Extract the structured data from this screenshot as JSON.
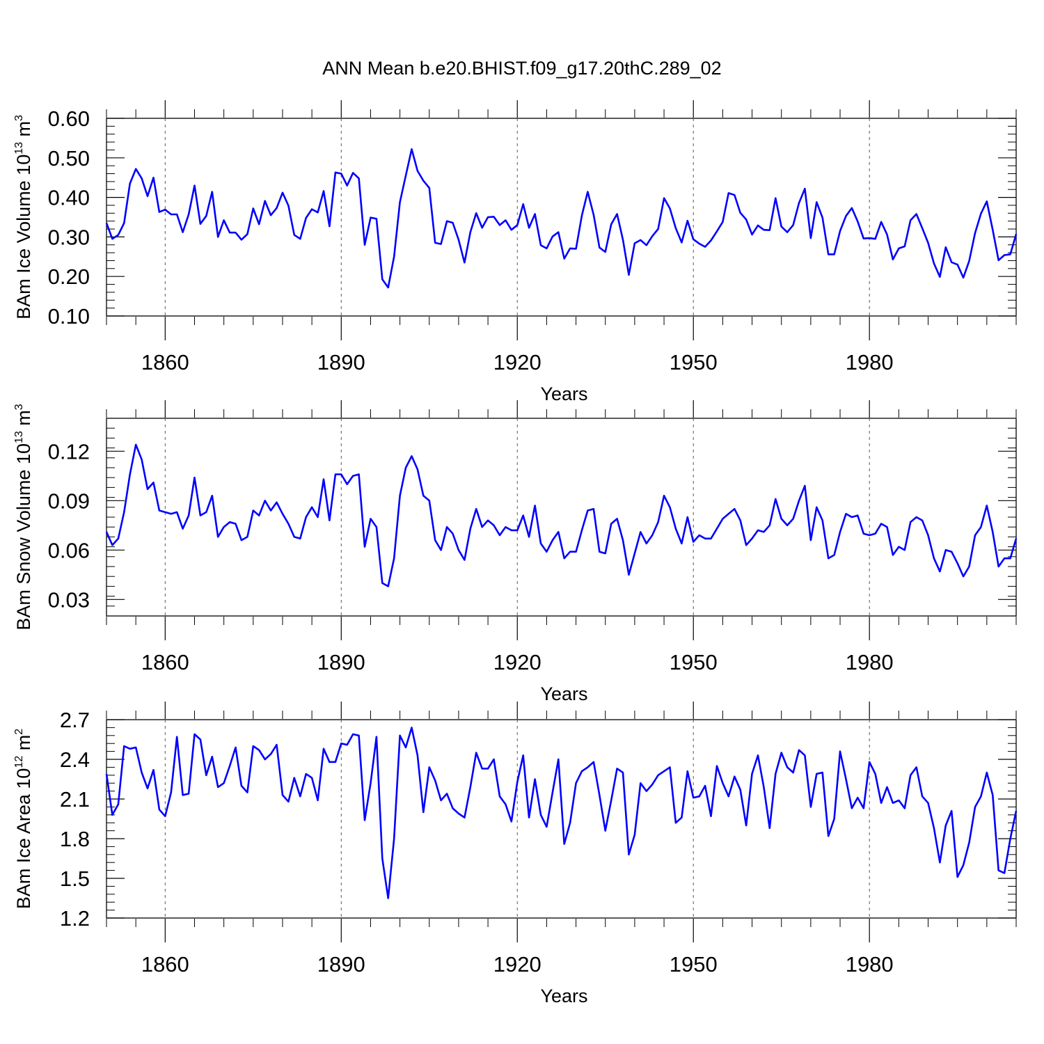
{
  "title": "ANN Mean b.e20.BHIST.f09_g17.20thC.289_02",
  "series_color": "#0000ff",
  "chart_data": [
    {
      "type": "line",
      "panel": "ice-volume",
      "ylabel_main": "BAm Ice Volume 10",
      "ylabel_exp": "13",
      "ylabel_unit": " m",
      "ylabel_unit_exp": "3",
      "xlabel": "Years",
      "xlim": [
        1850,
        2005
      ],
      "ylim": [
        0.1,
        0.6
      ],
      "x_ticks": [
        "1860",
        "1890",
        "1920",
        "1950",
        "1980"
      ],
      "y_ticks": [
        "0.10",
        "0.20",
        "0.30",
        "0.40",
        "0.50",
        "0.60"
      ],
      "x_start": 1850,
      "values": [
        0.335,
        0.295,
        0.305,
        0.335,
        0.435,
        0.472,
        0.448,
        0.403,
        0.45,
        0.363,
        0.369,
        0.357,
        0.357,
        0.312,
        0.357,
        0.43,
        0.333,
        0.353,
        0.414,
        0.3,
        0.342,
        0.311,
        0.311,
        0.293,
        0.307,
        0.372,
        0.332,
        0.391,
        0.355,
        0.373,
        0.412,
        0.379,
        0.305,
        0.295,
        0.348,
        0.37,
        0.362,
        0.416,
        0.327,
        0.463,
        0.46,
        0.43,
        0.462,
        0.448,
        0.28,
        0.349,
        0.346,
        0.193,
        0.172,
        0.25,
        0.388,
        0.455,
        0.522,
        0.467,
        0.442,
        0.424,
        0.285,
        0.282,
        0.34,
        0.336,
        0.293,
        0.235,
        0.312,
        0.36,
        0.323,
        0.35,
        0.351,
        0.33,
        0.342,
        0.318,
        0.33,
        0.383,
        0.323,
        0.358,
        0.279,
        0.271,
        0.301,
        0.312,
        0.245,
        0.271,
        0.27,
        0.354,
        0.414,
        0.356,
        0.273,
        0.262,
        0.332,
        0.358,
        0.293,
        0.204,
        0.284,
        0.292,
        0.279,
        0.302,
        0.32,
        0.398,
        0.372,
        0.322,
        0.286,
        0.341,
        0.294,
        0.283,
        0.275,
        0.291,
        0.314,
        0.338,
        0.411,
        0.406,
        0.361,
        0.344,
        0.306,
        0.329,
        0.318,
        0.317,
        0.398,
        0.326,
        0.312,
        0.33,
        0.386,
        0.422,
        0.297,
        0.388,
        0.349,
        0.256,
        0.256,
        0.315,
        0.353,
        0.373,
        0.339,
        0.296,
        0.297,
        0.295,
        0.338,
        0.306,
        0.243,
        0.271,
        0.276,
        0.342,
        0.358,
        0.322,
        0.285,
        0.233,
        0.199,
        0.274,
        0.236,
        0.23,
        0.197,
        0.239,
        0.31,
        0.359,
        0.39,
        0.318,
        0.241,
        0.254,
        0.256,
        0.307
      ]
    },
    {
      "type": "line",
      "panel": "snow-volume",
      "ylabel_main": "BAm Snow Volume 10",
      "ylabel_exp": "13",
      "ylabel_unit": " m",
      "ylabel_unit_exp": "3",
      "xlabel": "Years",
      "xlim": [
        1850,
        2005
      ],
      "ylim": [
        0.02,
        0.14
      ],
      "x_ticks": [
        "1860",
        "1890",
        "1920",
        "1950",
        "1980"
      ],
      "y_ticks": [
        "0.03",
        "0.06",
        "0.09",
        "0.12"
      ],
      "x_start": 1850,
      "values": [
        0.071,
        0.063,
        0.067,
        0.083,
        0.106,
        0.124,
        0.115,
        0.097,
        0.101,
        0.084,
        0.083,
        0.082,
        0.083,
        0.073,
        0.081,
        0.104,
        0.081,
        0.083,
        0.093,
        0.068,
        0.074,
        0.077,
        0.076,
        0.066,
        0.068,
        0.084,
        0.081,
        0.09,
        0.084,
        0.089,
        0.082,
        0.076,
        0.068,
        0.067,
        0.08,
        0.086,
        0.08,
        0.103,
        0.078,
        0.106,
        0.106,
        0.1,
        0.105,
        0.106,
        0.062,
        0.079,
        0.074,
        0.04,
        0.038,
        0.055,
        0.093,
        0.11,
        0.117,
        0.109,
        0.093,
        0.09,
        0.066,
        0.06,
        0.074,
        0.07,
        0.06,
        0.054,
        0.073,
        0.085,
        0.074,
        0.078,
        0.075,
        0.069,
        0.074,
        0.072,
        0.072,
        0.081,
        0.068,
        0.087,
        0.064,
        0.059,
        0.066,
        0.071,
        0.055,
        0.059,
        0.059,
        0.072,
        0.084,
        0.085,
        0.059,
        0.058,
        0.076,
        0.079,
        0.066,
        0.045,
        0.058,
        0.071,
        0.064,
        0.069,
        0.077,
        0.093,
        0.086,
        0.073,
        0.064,
        0.08,
        0.065,
        0.069,
        0.067,
        0.067,
        0.073,
        0.079,
        0.082,
        0.085,
        0.078,
        0.063,
        0.067,
        0.072,
        0.071,
        0.075,
        0.091,
        0.079,
        0.075,
        0.079,
        0.09,
        0.099,
        0.066,
        0.086,
        0.078,
        0.055,
        0.057,
        0.071,
        0.082,
        0.08,
        0.081,
        0.07,
        0.069,
        0.07,
        0.076,
        0.074,
        0.057,
        0.062,
        0.06,
        0.077,
        0.08,
        0.078,
        0.069,
        0.055,
        0.047,
        0.06,
        0.059,
        0.052,
        0.044,
        0.05,
        0.069,
        0.074,
        0.087,
        0.071,
        0.05,
        0.055,
        0.055,
        0.067
      ]
    },
    {
      "type": "line",
      "panel": "ice-area",
      "ylabel_main": "BAm Ice Area 10",
      "ylabel_exp": "12",
      "ylabel_unit": " m",
      "ylabel_unit_exp": "2",
      "xlabel": "Years",
      "xlim": [
        1850,
        2005
      ],
      "ylim": [
        1.2,
        2.7
      ],
      "x_ticks": [
        "1860",
        "1890",
        "1920",
        "1950",
        "1980"
      ],
      "y_ticks": [
        "1.2",
        "1.5",
        "1.8",
        "2.1",
        "2.4",
        "2.7"
      ],
      "x_start": 1850,
      "values": [
        2.29,
        1.98,
        2.06,
        2.5,
        2.48,
        2.49,
        2.3,
        2.18,
        2.32,
        2.02,
        1.97,
        2.15,
        2.57,
        2.13,
        2.14,
        2.59,
        2.55,
        2.28,
        2.42,
        2.19,
        2.22,
        2.35,
        2.49,
        2.2,
        2.15,
        2.5,
        2.47,
        2.4,
        2.44,
        2.51,
        2.13,
        2.08,
        2.26,
        2.12,
        2.29,
        2.26,
        2.09,
        2.48,
        2.38,
        2.38,
        2.52,
        2.51,
        2.59,
        2.58,
        1.94,
        2.22,
        2.57,
        1.65,
        1.35,
        1.8,
        2.58,
        2.49,
        2.64,
        2.43,
        2.0,
        2.34,
        2.24,
        2.09,
        2.14,
        2.03,
        1.99,
        1.96,
        2.19,
        2.45,
        2.33,
        2.33,
        2.4,
        2.12,
        2.06,
        1.93,
        2.23,
        2.43,
        1.96,
        2.25,
        1.98,
        1.89,
        2.15,
        2.4,
        1.76,
        1.92,
        2.22,
        2.31,
        2.34,
        2.38,
        2.13,
        1.86,
        2.09,
        2.33,
        2.3,
        1.68,
        1.83,
        2.22,
        2.16,
        2.21,
        2.28,
        2.31,
        2.34,
        1.92,
        1.96,
        2.31,
        2.11,
        2.12,
        2.2,
        1.97,
        2.35,
        2.22,
        2.12,
        2.27,
        2.17,
        1.9,
        2.29,
        2.43,
        2.19,
        1.88,
        2.29,
        2.45,
        2.34,
        2.3,
        2.47,
        2.43,
        2.04,
        2.29,
        2.3,
        1.82,
        1.95,
        2.46,
        2.25,
        2.03,
        2.11,
        2.03,
        2.38,
        2.29,
        2.07,
        2.19,
        2.07,
        2.09,
        2.03,
        2.28,
        2.34,
        2.12,
        2.07,
        1.88,
        1.62,
        1.9,
        2.01,
        1.51,
        1.6,
        1.77,
        2.04,
        2.12,
        2.3,
        2.13,
        1.56,
        1.54,
        1.8,
        2.01
      ]
    }
  ]
}
